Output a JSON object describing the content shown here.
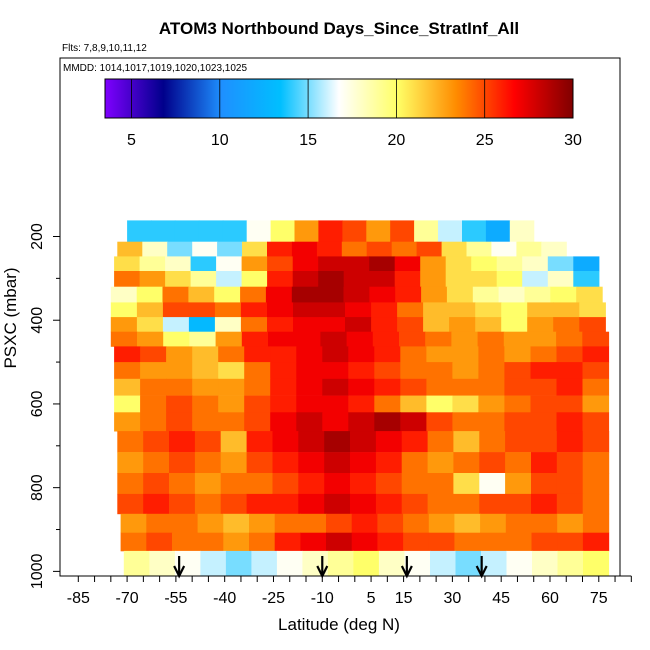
{
  "chart_data": {
    "type": "heatmap",
    "title": "ATOM3 Northbound Days_Since_StratInf_All",
    "subtitle_flights": "Flts: 7,8,9,10,11,12",
    "subtitle_dates": "MMDD: 1014,1017,1019,1020,1023,1025",
    "xlabel": "Latitude (deg N)",
    "ylabel": "PSXC (mbar)",
    "xlim": [
      -85,
      85
    ],
    "ylim": [
      1000,
      0
    ],
    "x_ticks": [
      -85,
      -70,
      -55,
      -40,
      -25,
      -10,
      5,
      15,
      30,
      45,
      60,
      75
    ],
    "x_tick_labels": [
      "-85",
      "-70",
      "-55",
      "-40",
      "-25",
      "-10",
      "5",
      "15",
      "30",
      "45",
      "60",
      "75"
    ],
    "y_ticks": [
      200,
      400,
      600,
      800,
      1000
    ],
    "y_tick_labels": [
      "200",
      "400",
      "600",
      "800",
      "1000"
    ],
    "colorbar": {
      "range": [
        3.5,
        30
      ],
      "ticks": [
        5,
        10,
        15,
        20,
        25,
        30
      ],
      "tick_labels": [
        "5",
        "10",
        "15",
        "20",
        "25",
        "30"
      ],
      "colors": [
        "#7f00ff",
        "#00008b",
        "#1e90ff",
        "#00bfff",
        "#ffffff",
        "#ffff66",
        "#ff8c00",
        "#ff0000",
        "#800000"
      ]
    },
    "arrow_latitudes": [
      -54,
      -10,
      16,
      39
    ],
    "bands": [
      {
        "p": 195,
        "lat_min": -70,
        "lat_max": 55,
        "values": [
          14,
          14,
          14,
          14,
          14,
          17,
          20,
          23,
          26,
          25,
          23,
          25,
          19,
          16,
          14,
          12,
          18
        ]
      },
      {
        "p": 230,
        "lat_min": -73,
        "lat_max": 65,
        "values": [
          22,
          18,
          15,
          17,
          15,
          21,
          26,
          27,
          26,
          24,
          25,
          24,
          25,
          21,
          19,
          17,
          19,
          18
        ]
      },
      {
        "p": 265,
        "lat_min": -74,
        "lat_max": 75,
        "values": [
          21,
          19,
          18,
          14,
          17,
          23,
          25,
          27,
          28,
          28,
          29,
          27,
          23,
          21,
          20,
          19,
          18,
          15,
          12
        ]
      },
      {
        "p": 300,
        "lat_min": -74,
        "lat_max": 75,
        "values": [
          24,
          23,
          21,
          19,
          16,
          20,
          26,
          28,
          29,
          28,
          28,
          26,
          23,
          21,
          21,
          20,
          16,
          18,
          14
        ]
      },
      {
        "p": 340,
        "lat_min": -75,
        "lat_max": 76,
        "values": [
          18,
          20,
          24,
          22,
          20,
          24,
          27,
          29,
          29,
          28,
          27,
          26,
          23,
          21,
          19,
          18,
          19,
          20,
          21
        ]
      },
      {
        "p": 375,
        "lat_min": -75,
        "lat_max": 77,
        "values": [
          20,
          22,
          25,
          25,
          24,
          26,
          27,
          28,
          28,
          27,
          26,
          24,
          22,
          22,
          21,
          20,
          22,
          22,
          21
        ]
      },
      {
        "p": 410,
        "lat_min": -75,
        "lat_max": 77,
        "values": [
          23,
          21,
          16,
          13,
          18,
          24,
          26,
          27,
          27,
          28,
          26,
          25,
          22,
          23,
          22,
          20,
          23,
          24,
          25
        ]
      },
      {
        "p": 445,
        "lat_min": -75,
        "lat_max": 78,
        "values": [
          24,
          23,
          20,
          19,
          23,
          26,
          27,
          27,
          28,
          27,
          26,
          25,
          24,
          23,
          24,
          23,
          23,
          24,
          25
        ]
      },
      {
        "p": 480,
        "lat_min": -74,
        "lat_max": 78,
        "values": [
          26,
          25,
          23,
          22,
          24,
          26,
          26,
          27,
          28,
          27,
          26,
          24,
          23,
          23,
          24,
          23,
          24,
          25,
          26
        ]
      },
      {
        "p": 520,
        "lat_min": -74,
        "lat_max": 78,
        "values": [
          24,
          23,
          23,
          22,
          21,
          24,
          26,
          27,
          27,
          26,
          25,
          24,
          24,
          23,
          24,
          25,
          26,
          26,
          25
        ]
      },
      {
        "p": 560,
        "lat_min": -74,
        "lat_max": 78,
        "values": [
          22,
          24,
          24,
          23,
          23,
          24,
          26,
          27,
          28,
          27,
          26,
          25,
          24,
          24,
          24,
          25,
          25,
          26,
          24
        ]
      },
      {
        "p": 600,
        "lat_min": -74,
        "lat_max": 78,
        "values": [
          20,
          24,
          25,
          24,
          23,
          25,
          26,
          27,
          27,
          26,
          24,
          22,
          20,
          21,
          23,
          24,
          25,
          25,
          23
        ]
      },
      {
        "p": 640,
        "lat_min": -74,
        "lat_max": 78,
        "values": [
          23,
          24,
          25,
          24,
          24,
          25,
          27,
          28,
          27,
          28,
          29,
          28,
          25,
          24,
          24,
          25,
          25,
          26,
          25
        ]
      },
      {
        "p": 690,
        "lat_min": -73,
        "lat_max": 78,
        "values": [
          24,
          25,
          26,
          25,
          22,
          26,
          27,
          28,
          29,
          28,
          27,
          26,
          24,
          22,
          24,
          25,
          25,
          26,
          25
        ]
      },
      {
        "p": 740,
        "lat_min": -73,
        "lat_max": 78,
        "values": [
          23,
          24,
          25,
          24,
          23,
          25,
          26,
          27,
          28,
          27,
          26,
          24,
          23,
          24,
          25,
          24,
          26,
          25,
          24
        ]
      },
      {
        "p": 790,
        "lat_min": -73,
        "lat_max": 78,
        "values": [
          24,
          25,
          24,
          23,
          24,
          24,
          25,
          26,
          27,
          26,
          25,
          24,
          24,
          21,
          17,
          23,
          25,
          25,
          24
        ]
      },
      {
        "p": 840,
        "lat_min": -73,
        "lat_max": 78,
        "values": [
          25,
          26,
          25,
          24,
          25,
          26,
          26,
          27,
          28,
          27,
          26,
          25,
          24,
          24,
          25,
          25,
          26,
          25,
          24
        ]
      },
      {
        "p": 885,
        "lat_min": -72,
        "lat_max": 78,
        "values": [
          23,
          24,
          24,
          23,
          22,
          23,
          24,
          24,
          25,
          26,
          25,
          24,
          23,
          22,
          23,
          24,
          24,
          23,
          24
        ]
      },
      {
        "p": 930,
        "lat_min": -72,
        "lat_max": 78,
        "values": [
          24,
          25,
          24,
          24,
          23,
          24,
          26,
          27,
          28,
          27,
          26,
          25,
          25,
          24,
          24,
          24,
          25,
          25,
          26
        ]
      },
      {
        "p": 972,
        "lat_min": -71,
        "lat_max": 78,
        "values": [
          19,
          18,
          17,
          16,
          15,
          16,
          17,
          18,
          19,
          20,
          18,
          17,
          16,
          15,
          16,
          17,
          18,
          19,
          20
        ]
      }
    ]
  }
}
